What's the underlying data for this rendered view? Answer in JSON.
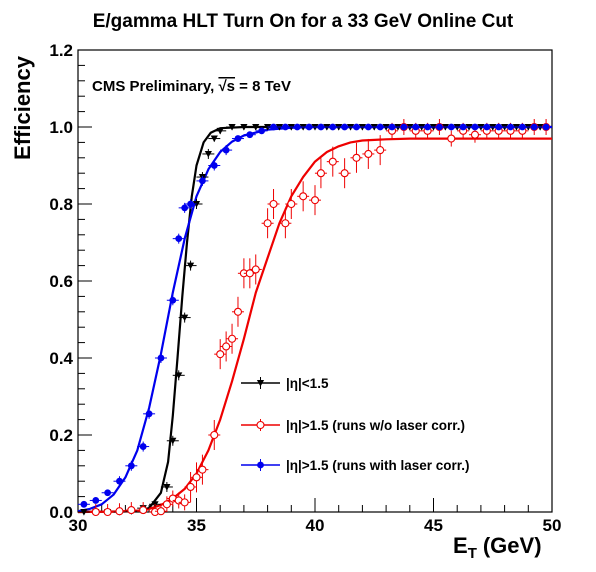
{
  "chart_data": {
    "type": "scatter",
    "title": "E/gamma HLT Turn On for a 33 GeV Online Cut",
    "xlabel": "E",
    "xlabel_sub": "T",
    "xlabel_unit": "(GeV)",
    "ylabel": "Efficiency",
    "annotation_prefix": "CMS Preliminary, ",
    "annotation_sqrt": "√s",
    "annotation_suffix": " = 8 TeV",
    "xlim": [
      30,
      50
    ],
    "ylim": [
      0,
      1.2
    ],
    "xticks": [
      "30",
      "35",
      "40",
      "45",
      "50"
    ],
    "yticks": [
      "0.0",
      "0.2",
      "0.4",
      "0.6",
      "0.8",
      "1.0",
      "1.2"
    ],
    "legend_position": "bottom-right",
    "series": [
      {
        "name": "|η|<1.5",
        "color": "#000000",
        "marker": "triangle-down",
        "points": [
          [
            30.25,
            0.0
          ],
          [
            30.75,
            0.0
          ],
          [
            31.25,
            0.0
          ],
          [
            31.75,
            0.0
          ],
          [
            32.25,
            0.002
          ],
          [
            32.75,
            0.01
          ],
          [
            33.25,
            0.02
          ],
          [
            33.75,
            0.065
          ],
          [
            34.0,
            0.185
          ],
          [
            34.25,
            0.355
          ],
          [
            34.5,
            0.505
          ],
          [
            34.75,
            0.64
          ],
          [
            35.0,
            0.8
          ],
          [
            35.25,
            0.87
          ],
          [
            35.5,
            0.93
          ],
          [
            35.75,
            0.97
          ],
          [
            36.0,
            0.99
          ],
          [
            36.5,
            1.0
          ],
          [
            37.0,
            1.0
          ],
          [
            37.5,
            1.0
          ],
          [
            38.0,
            1.0
          ],
          [
            38.5,
            1.0
          ],
          [
            39.0,
            1.0
          ],
          [
            39.5,
            1.0
          ],
          [
            40.0,
            1.0
          ],
          [
            40.5,
            1.0
          ],
          [
            41.0,
            1.0
          ],
          [
            41.5,
            1.0
          ],
          [
            42.0,
            1.0
          ],
          [
            42.5,
            1.0
          ],
          [
            43.0,
            1.0
          ],
          [
            43.5,
            1.0
          ],
          [
            44.0,
            1.0
          ],
          [
            44.5,
            1.0
          ],
          [
            45.0,
            1.0
          ],
          [
            45.5,
            1.0
          ],
          [
            46.0,
            1.0
          ],
          [
            46.5,
            1.0
          ],
          [
            47.0,
            1.0
          ],
          [
            47.5,
            1.0
          ],
          [
            48.0,
            1.0
          ],
          [
            48.5,
            1.0
          ],
          [
            49.0,
            1.0
          ],
          [
            49.5,
            1.0
          ]
        ],
        "fit": [
          [
            30.0,
            0.0
          ],
          [
            32.5,
            0.002
          ],
          [
            33.0,
            0.01
          ],
          [
            33.5,
            0.05
          ],
          [
            33.8,
            0.13
          ],
          [
            34.0,
            0.25
          ],
          [
            34.2,
            0.4
          ],
          [
            34.4,
            0.56
          ],
          [
            34.6,
            0.7
          ],
          [
            34.8,
            0.82
          ],
          [
            35.0,
            0.9
          ],
          [
            35.3,
            0.96
          ],
          [
            35.6,
            0.985
          ],
          [
            36.0,
            0.997
          ],
          [
            37.0,
            1.0
          ],
          [
            50.0,
            1.0
          ]
        ]
      },
      {
        "name": "|η|>1.5 (runs w/o laser corr.)",
        "color": "#ee0000",
        "marker": "open-circle",
        "points": [
          [
            30.75,
            0.0
          ],
          [
            31.25,
            0.0
          ],
          [
            31.75,
            0.002
          ],
          [
            32.25,
            0.005
          ],
          [
            32.75,
            0.005
          ],
          [
            33.25,
            0.0
          ],
          [
            33.5,
            0.002
          ],
          [
            33.75,
            0.02
          ],
          [
            34.0,
            0.035
          ],
          [
            34.25,
            0.03
          ],
          [
            34.5,
            0.025
          ],
          [
            34.75,
            0.065
          ],
          [
            35.0,
            0.09
          ],
          [
            35.25,
            0.11
          ],
          [
            35.75,
            0.2
          ],
          [
            36.0,
            0.41
          ],
          [
            36.25,
            0.43
          ],
          [
            36.5,
            0.45
          ],
          [
            36.75,
            0.52
          ],
          [
            37.0,
            0.62
          ],
          [
            37.25,
            0.62
          ],
          [
            37.5,
            0.63
          ],
          [
            38.0,
            0.75
          ],
          [
            38.25,
            0.8
          ],
          [
            38.75,
            0.75
          ],
          [
            39.0,
            0.8
          ],
          [
            39.5,
            0.82
          ],
          [
            40.0,
            0.81
          ],
          [
            40.25,
            0.88
          ],
          [
            40.75,
            0.91
          ],
          [
            41.25,
            0.88
          ],
          [
            41.75,
            0.92
          ],
          [
            42.25,
            0.93
          ],
          [
            42.75,
            0.94
          ],
          [
            43.25,
            0.99
          ],
          [
            43.75,
            1.0
          ],
          [
            44.25,
            0.99
          ],
          [
            44.75,
            0.99
          ],
          [
            45.25,
            1.0
          ],
          [
            45.75,
            0.97
          ],
          [
            46.25,
            0.99
          ],
          [
            46.75,
            0.98
          ],
          [
            47.25,
            0.99
          ],
          [
            47.75,
            0.99
          ],
          [
            48.25,
            0.99
          ],
          [
            48.75,
            0.99
          ],
          [
            49.25,
            1.0
          ],
          [
            49.75,
            1.0
          ]
        ],
        "fit": [
          [
            30.0,
            0.0
          ],
          [
            31.5,
            0.001
          ],
          [
            32.5,
            0.003
          ],
          [
            33.0,
            0.008
          ],
          [
            33.5,
            0.018
          ],
          [
            34.0,
            0.035
          ],
          [
            34.5,
            0.06
          ],
          [
            35.0,
            0.1
          ],
          [
            35.5,
            0.16
          ],
          [
            36.0,
            0.24
          ],
          [
            36.5,
            0.34
          ],
          [
            37.0,
            0.45
          ],
          [
            37.5,
            0.57
          ],
          [
            38.0,
            0.66
          ],
          [
            38.5,
            0.75
          ],
          [
            39.0,
            0.82
          ],
          [
            39.5,
            0.87
          ],
          [
            40.0,
            0.91
          ],
          [
            40.5,
            0.935
          ],
          [
            41.0,
            0.95
          ],
          [
            41.5,
            0.96
          ],
          [
            42.0,
            0.965
          ],
          [
            43.0,
            0.968
          ],
          [
            44.0,
            0.97
          ],
          [
            50.0,
            0.97
          ]
        ]
      },
      {
        "name": "|η|>1.5 (runs with laser corr.)",
        "color": "#0000ee",
        "marker": "filled-circle",
        "points": [
          [
            30.25,
            0.02
          ],
          [
            30.75,
            0.03
          ],
          [
            31.25,
            0.05
          ],
          [
            31.75,
            0.08
          ],
          [
            32.25,
            0.12
          ],
          [
            32.75,
            0.17
          ],
          [
            33.0,
            0.255
          ],
          [
            33.5,
            0.4
          ],
          [
            34.0,
            0.55
          ],
          [
            34.25,
            0.71
          ],
          [
            34.5,
            0.79
          ],
          [
            34.75,
            0.8
          ],
          [
            35.25,
            0.86
          ],
          [
            35.75,
            0.9
          ],
          [
            36.25,
            0.94
          ],
          [
            36.75,
            0.97
          ],
          [
            37.25,
            0.98
          ],
          [
            37.75,
            0.99
          ],
          [
            38.25,
            1.0
          ],
          [
            38.75,
            1.0
          ],
          [
            39.25,
            1.0
          ],
          [
            39.75,
            1.0
          ],
          [
            40.25,
            1.0
          ],
          [
            40.75,
            1.0
          ],
          [
            41.25,
            1.0
          ],
          [
            41.75,
            1.0
          ],
          [
            42.25,
            1.0
          ],
          [
            42.75,
            1.0
          ],
          [
            43.25,
            1.0
          ],
          [
            43.75,
            1.0
          ],
          [
            44.25,
            1.0
          ],
          [
            44.75,
            1.0
          ],
          [
            45.25,
            1.0
          ],
          [
            45.75,
            1.0
          ],
          [
            46.25,
            1.0
          ],
          [
            46.75,
            1.0
          ],
          [
            47.25,
            1.0
          ],
          [
            47.75,
            1.0
          ],
          [
            48.25,
            1.0
          ],
          [
            48.75,
            1.0
          ],
          [
            49.25,
            1.0
          ],
          [
            49.75,
            1.0
          ]
        ],
        "fit": [
          [
            30.0,
            0.002
          ],
          [
            30.5,
            0.008
          ],
          [
            31.0,
            0.02
          ],
          [
            31.5,
            0.045
          ],
          [
            32.0,
            0.09
          ],
          [
            32.5,
            0.16
          ],
          [
            33.0,
            0.27
          ],
          [
            33.5,
            0.41
          ],
          [
            34.0,
            0.57
          ],
          [
            34.5,
            0.71
          ],
          [
            35.0,
            0.82
          ],
          [
            35.5,
            0.89
          ],
          [
            36.0,
            0.935
          ],
          [
            36.5,
            0.962
          ],
          [
            37.0,
            0.978
          ],
          [
            38.0,
            0.993
          ],
          [
            39.0,
            0.998
          ],
          [
            40.0,
            1.0
          ],
          [
            50.0,
            1.0
          ]
        ]
      }
    ]
  }
}
